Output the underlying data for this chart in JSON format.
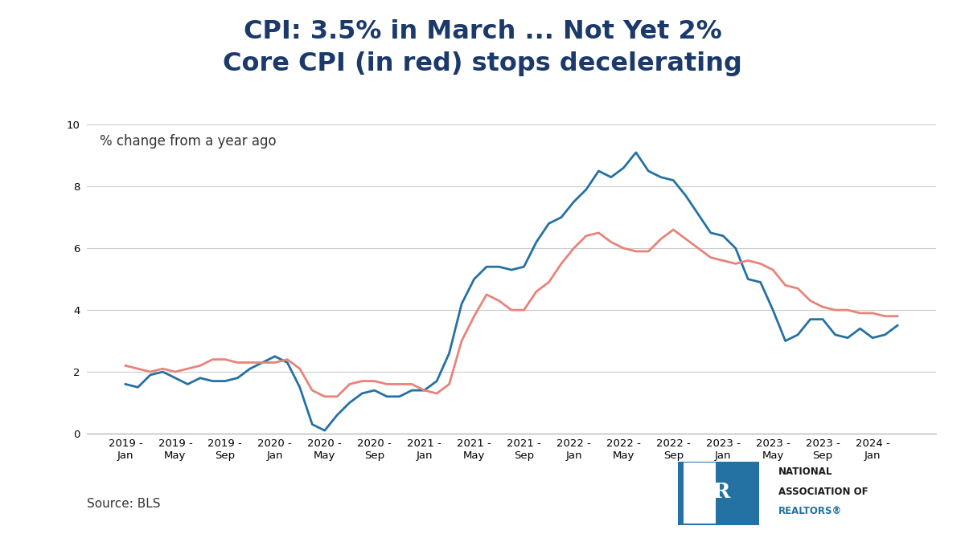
{
  "title_line1": "CPI: 3.5% in March ... Not Yet 2%",
  "title_line2": "Core CPI (in red) stops decelerating",
  "subtitle": "% change from a year ago",
  "source": "Source: BLS",
  "cpi_color": "#2471A3",
  "core_cpi_color": "#E8837A",
  "background_color": "#FFFFFF",
  "ylim": [
    0,
    10
  ],
  "yticks": [
    0,
    2,
    4,
    6,
    8,
    10
  ],
  "title_color": "#1B3A6B",
  "title_fontsize": 23,
  "subtitle_fontsize": 12,
  "axis_fontsize": 9.5,
  "source_fontsize": 11,
  "cpi_monthly": [
    1.6,
    1.5,
    1.9,
    2.0,
    1.8,
    1.6,
    1.8,
    1.7,
    1.7,
    1.8,
    2.1,
    2.3,
    2.5,
    2.3,
    1.5,
    0.3,
    0.1,
    0.6,
    1.0,
    1.3,
    1.4,
    1.2,
    1.2,
    1.4,
    1.4,
    1.7,
    2.6,
    4.2,
    5.0,
    5.4,
    5.4,
    5.3,
    5.4,
    6.2,
    6.8,
    7.0,
    7.5,
    7.9,
    8.5,
    8.3,
    8.6,
    9.1,
    8.5,
    8.3,
    8.2,
    7.7,
    7.1,
    6.5,
    6.4,
    6.0,
    5.0,
    4.9,
    4.0,
    3.0,
    3.2,
    3.7,
    3.7,
    3.2,
    3.1,
    3.4,
    3.1,
    3.2,
    3.5
  ],
  "core_cpi_monthly": [
    2.2,
    2.1,
    2.0,
    2.1,
    2.0,
    2.1,
    2.2,
    2.4,
    2.4,
    2.3,
    2.3,
    2.3,
    2.3,
    2.4,
    2.1,
    1.4,
    1.2,
    1.2,
    1.6,
    1.7,
    1.7,
    1.6,
    1.6,
    1.6,
    1.4,
    1.3,
    1.6,
    3.0,
    3.8,
    4.5,
    4.3,
    4.0,
    4.0,
    4.6,
    4.9,
    5.5,
    6.0,
    6.4,
    6.5,
    6.2,
    6.0,
    5.9,
    5.9,
    6.3,
    6.6,
    6.3,
    6.0,
    5.7,
    5.6,
    5.5,
    5.6,
    5.5,
    5.3,
    4.8,
    4.7,
    4.3,
    4.1,
    4.0,
    4.0,
    3.9,
    3.9,
    3.8,
    3.8
  ],
  "nar_box_color": "#2471A3",
  "nar_text_color": "#1B1B1B",
  "nar_realtor_color": "#2471A3"
}
